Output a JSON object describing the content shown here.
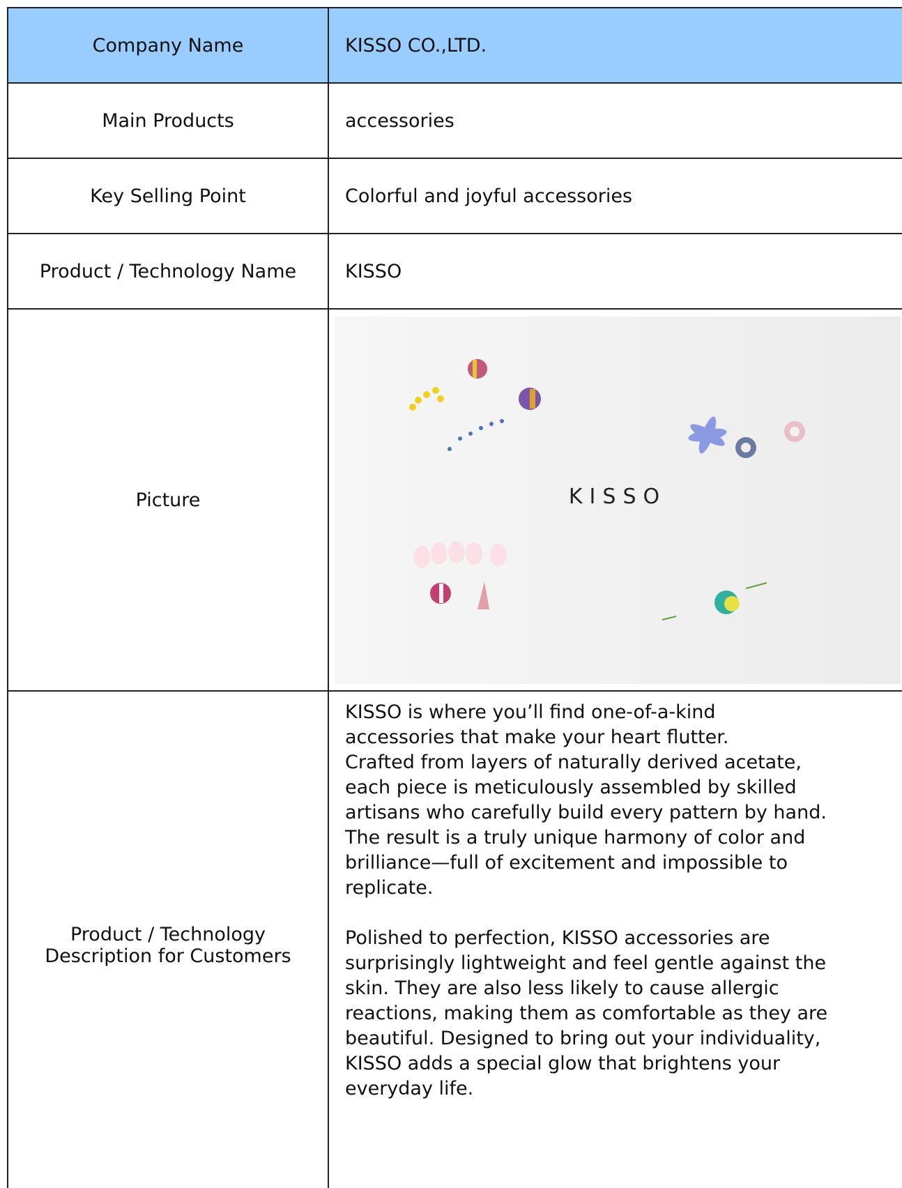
{
  "table": {
    "rows": [
      {
        "label": "Company  Name",
        "value": "KISSO CO.,LTD."
      },
      {
        "label": "Main Products",
        "value": "accessories"
      },
      {
        "label": "Key Selling Point",
        "value": "Colorful and joyful accessories"
      },
      {
        "label": "Product / Technology Name",
        "value": "KISSO"
      },
      {
        "label": "Picture",
        "image_text": "KISSO"
      },
      {
        "label": "Product / Technology Description for Customers",
        "paragraphs": [
          [
            "KISSO is where you’ll find one-of-a-kind",
            "accessories that make your heart flutter.",
            "Crafted from layers of naturally derived acetate,",
            "each piece is meticulously assembled by skilled",
            "artisans who carefully build every pattern by hand.",
            "The result is a truly unique harmony of color and",
            "brilliance—full of excitement and impossible to",
            "replicate."
          ],
          [
            "Polished to perfection, KISSO accessories are",
            "surprisingly lightweight and feel gentle against the",
            "skin. They are also less likely to cause allergic",
            "reactions, making them as comfortable as they are",
            "beautiful. Designed to bring out your individuality,",
            "KISSO adds a special glow that brightens your",
            "everyday life."
          ]
        ]
      }
    ]
  }
}
